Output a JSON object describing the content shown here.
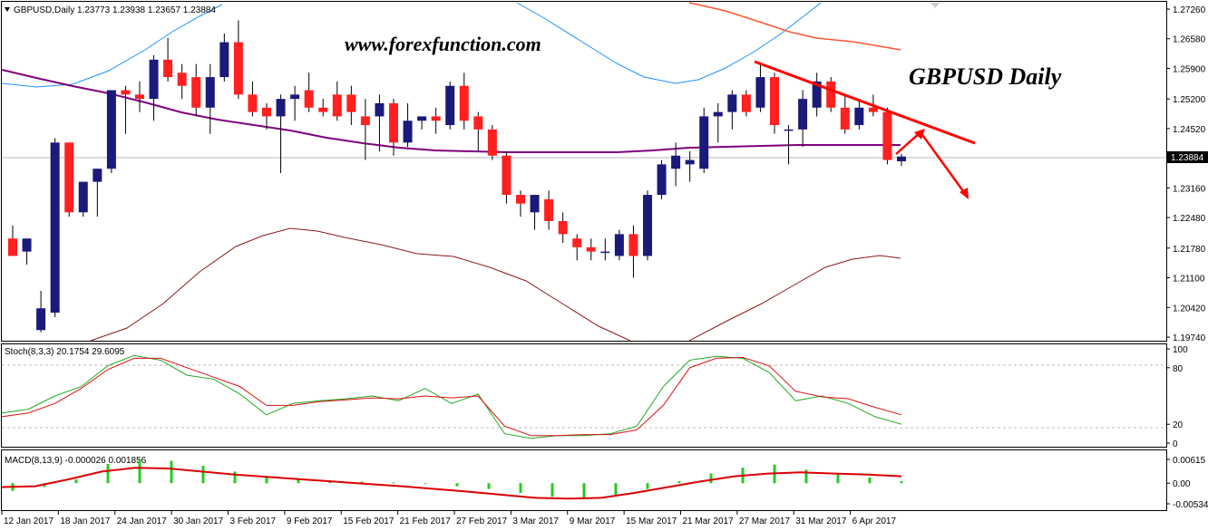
{
  "colors": {
    "background": "#ffffff",
    "bull_candle": "#1a1a7a",
    "bear_candle": "#ff2020",
    "wick": "#000000",
    "ma_purple": "#800080",
    "bb_blue": "#1e90ff",
    "ma_orange": "#ff5533",
    "bb_lower": "#8b1a1a",
    "stoch_main": "#22aa22",
    "stoch_signal": "#dd1111",
    "macd_hist": "#22cc22",
    "macd_signal": "#dd0000",
    "trend_line": "#ff0000",
    "price_line": "#b0b0b0"
  },
  "watermark": {
    "site": "www.forexfunction.com",
    "title": "GBPUSD Daily"
  },
  "price_panel": {
    "info": "GBPUSD,Daily  1.23773 1.23938 1.23657 1.23884",
    "current_price_label": "1.23884",
    "axis_labels": [
      "1.27260",
      "1.26580",
      "1.25900",
      "1.25200",
      "1.24520",
      "1.23160",
      "1.22480",
      "1.21780",
      "1.21100",
      "1.20420",
      "1.19740"
    ]
  },
  "stoch_panel": {
    "info": "Stoch(8,3,3) 20.1754 29.6095",
    "axis_labels": [
      "100",
      "80",
      "20",
      "0"
    ]
  },
  "macd_panel": {
    "info": "MACD(8,13,9) -0.000026 0.001856",
    "axis_labels": [
      "0.00615",
      "0.00",
      "-0.00534"
    ]
  },
  "date_labels": [
    "12 Jan 2017",
    "18 Jan 2017",
    "24 Jan 2017",
    "30 Jan 2017",
    "3 Feb 2017",
    "9 Feb 2017",
    "15 Feb 2017",
    "21 Feb 2017",
    "27 Feb 2017",
    "3 Mar 2017",
    "9 Mar 2017",
    "15 Mar 2017",
    "21 Mar 2017",
    "27 Mar 2017",
    "31 Mar 2017",
    "6 Apr 2017"
  ],
  "chart_data": {
    "type": "candlestick",
    "symbol": "GBPUSD",
    "timeframe": "Daily",
    "ylim": [
      1.1974,
      1.2726
    ],
    "candles": [
      {
        "o": 1.22,
        "h": 1.223,
        "l": 1.216,
        "c": 1.216
      },
      {
        "o": 1.217,
        "h": 1.22,
        "l": 1.214,
        "c": 1.22
      },
      {
        "o": 1.199,
        "h": 1.208,
        "l": 1.1985,
        "c": 1.204
      },
      {
        "o": 1.203,
        "h": 1.243,
        "l": 1.202,
        "c": 1.242
      },
      {
        "o": 1.242,
        "h": 1.242,
        "l": 1.225,
        "c": 1.226
      },
      {
        "o": 1.226,
        "h": 1.233,
        "l": 1.225,
        "c": 1.233
      },
      {
        "o": 1.233,
        "h": 1.236,
        "l": 1.225,
        "c": 1.236
      },
      {
        "o": 1.236,
        "h": 1.254,
        "l": 1.235,
        "c": 1.254
      },
      {
        "o": 1.254,
        "h": 1.255,
        "l": 1.244,
        "c": 1.253
      },
      {
        "o": 1.253,
        "h": 1.256,
        "l": 1.249,
        "c": 1.252
      },
      {
        "o": 1.252,
        "h": 1.262,
        "l": 1.247,
        "c": 1.261
      },
      {
        "o": 1.261,
        "h": 1.266,
        "l": 1.256,
        "c": 1.257
      },
      {
        "o": 1.258,
        "h": 1.26,
        "l": 1.252,
        "c": 1.255
      },
      {
        "o": 1.257,
        "h": 1.26,
        "l": 1.248,
        "c": 1.25
      },
      {
        "o": 1.25,
        "h": 1.26,
        "l": 1.244,
        "c": 1.257
      },
      {
        "o": 1.257,
        "h": 1.267,
        "l": 1.256,
        "c": 1.265
      },
      {
        "o": 1.265,
        "h": 1.27,
        "l": 1.252,
        "c": 1.253
      },
      {
        "o": 1.253,
        "h": 1.256,
        "l": 1.248,
        "c": 1.249
      },
      {
        "o": 1.25,
        "h": 1.251,
        "l": 1.245,
        "c": 1.248
      },
      {
        "o": 1.248,
        "h": 1.253,
        "l": 1.235,
        "c": 1.252
      },
      {
        "o": 1.252,
        "h": 1.255,
        "l": 1.247,
        "c": 1.253
      },
      {
        "o": 1.254,
        "h": 1.258,
        "l": 1.249,
        "c": 1.25
      },
      {
        "o": 1.25,
        "h": 1.252,
        "l": 1.248,
        "c": 1.249
      },
      {
        "o": 1.253,
        "h": 1.256,
        "l": 1.247,
        "c": 1.248
      },
      {
        "o": 1.253,
        "h": 1.255,
        "l": 1.246,
        "c": 1.249
      },
      {
        "o": 1.248,
        "h": 1.252,
        "l": 1.238,
        "c": 1.246
      },
      {
        "o": 1.248,
        "h": 1.253,
        "l": 1.24,
        "c": 1.251
      },
      {
        "o": 1.251,
        "h": 1.252,
        "l": 1.239,
        "c": 1.242
      },
      {
        "o": 1.242,
        "h": 1.251,
        "l": 1.241,
        "c": 1.247
      },
      {
        "o": 1.247,
        "h": 1.248,
        "l": 1.245,
        "c": 1.248
      },
      {
        "o": 1.248,
        "h": 1.25,
        "l": 1.244,
        "c": 1.247
      },
      {
        "o": 1.246,
        "h": 1.256,
        "l": 1.245,
        "c": 1.255
      },
      {
        "o": 1.255,
        "h": 1.258,
        "l": 1.245,
        "c": 1.247
      },
      {
        "o": 1.248,
        "h": 1.249,
        "l": 1.24,
        "c": 1.245
      },
      {
        "o": 1.245,
        "h": 1.246,
        "l": 1.238,
        "c": 1.239
      },
      {
        "o": 1.239,
        "h": 1.24,
        "l": 1.228,
        "c": 1.23
      },
      {
        "o": 1.23,
        "h": 1.231,
        "l": 1.225,
        "c": 1.228
      },
      {
        "o": 1.226,
        "h": 1.23,
        "l": 1.222,
        "c": 1.23
      },
      {
        "o": 1.229,
        "h": 1.231,
        "l": 1.222,
        "c": 1.224
      },
      {
        "o": 1.224,
        "h": 1.226,
        "l": 1.219,
        "c": 1.221
      },
      {
        "o": 1.22,
        "h": 1.221,
        "l": 1.215,
        "c": 1.218
      },
      {
        "o": 1.218,
        "h": 1.22,
        "l": 1.215,
        "c": 1.217
      },
      {
        "o": 1.217,
        "h": 1.22,
        "l": 1.215,
        "c": 1.217
      },
      {
        "o": 1.216,
        "h": 1.222,
        "l": 1.215,
        "c": 1.221
      },
      {
        "o": 1.221,
        "h": 1.223,
        "l": 1.211,
        "c": 1.216
      },
      {
        "o": 1.216,
        "h": 1.231,
        "l": 1.215,
        "c": 1.23
      },
      {
        "o": 1.23,
        "h": 1.238,
        "l": 1.229,
        "c": 1.237
      },
      {
        "o": 1.236,
        "h": 1.242,
        "l": 1.232,
        "c": 1.239
      },
      {
        "o": 1.237,
        "h": 1.24,
        "l": 1.233,
        "c": 1.238
      },
      {
        "o": 1.236,
        "h": 1.25,
        "l": 1.235,
        "c": 1.248
      },
      {
        "o": 1.248,
        "h": 1.251,
        "l": 1.242,
        "c": 1.249
      },
      {
        "o": 1.249,
        "h": 1.254,
        "l": 1.245,
        "c": 1.253
      },
      {
        "o": 1.253,
        "h": 1.254,
        "l": 1.248,
        "c": 1.249
      },
      {
        "o": 1.25,
        "h": 1.26,
        "l": 1.249,
        "c": 1.257
      },
      {
        "o": 1.257,
        "h": 1.258,
        "l": 1.244,
        "c": 1.246
      },
      {
        "o": 1.245,
        "h": 1.246,
        "l": 1.237,
        "c": 1.245
      },
      {
        "o": 1.245,
        "h": 1.254,
        "l": 1.241,
        "c": 1.252
      },
      {
        "o": 1.25,
        "h": 1.258,
        "l": 1.248,
        "c": 1.256
      },
      {
        "o": 1.256,
        "h": 1.257,
        "l": 1.249,
        "c": 1.25
      },
      {
        "o": 1.25,
        "h": 1.253,
        "l": 1.244,
        "c": 1.245
      },
      {
        "o": 1.246,
        "h": 1.252,
        "l": 1.245,
        "c": 1.25
      },
      {
        "o": 1.25,
        "h": 1.253,
        "l": 1.248,
        "c": 1.249
      },
      {
        "o": 1.249,
        "h": 1.25,
        "l": 1.237,
        "c": 1.238
      },
      {
        "o": 1.2377,
        "h": 1.2394,
        "l": 1.2366,
        "c": 1.2388
      }
    ],
    "ma_purple": [
      1.256,
      1.255,
      1.254,
      1.253,
      1.252,
      1.251,
      1.25,
      1.249,
      1.248,
      1.247,
      1.246,
      1.245,
      1.2445,
      1.244,
      1.2435,
      1.243,
      1.2428,
      1.2426,
      1.2425,
      1.2424,
      1.2423,
      1.2422,
      1.2422,
      1.2421,
      1.2421,
      1.2421,
      1.2421,
      1.2421,
      1.2421,
      1.2421,
      1.2421,
      1.2421,
      1.2421,
      1.2422,
      1.2423,
      1.2424,
      1.2425,
      1.2425,
      1.2426
    ],
    "bb_upper": [
      1.259,
      1.262,
      1.266,
      1.27,
      1.273,
      1.276,
      1.279,
      1.282
    ],
    "stoch_main": [
      32,
      36,
      50,
      60,
      82,
      93,
      88,
      72,
      68,
      52,
      30,
      42,
      45,
      47,
      50,
      45,
      58,
      42,
      52,
      10,
      5,
      8,
      8,
      10,
      18,
      60,
      88,
      92,
      90,
      75,
      45,
      50,
      42,
      28,
      20
    ],
    "stoch_signal": [
      28,
      32,
      42,
      58,
      78,
      90,
      90,
      80,
      70,
      60,
      40,
      40,
      44,
      46,
      48,
      47,
      50,
      48,
      50,
      18,
      8,
      8,
      9,
      9,
      14,
      40,
      80,
      90,
      91,
      82,
      55,
      49,
      47,
      38,
      30
    ],
    "macd_hist": [
      -0.002,
      -0.001,
      0.001,
      0.005,
      0.0061,
      0.0058,
      0.0045,
      0.003,
      0.0018,
      0.001,
      0.0006,
      0.0004,
      0.0002,
      -0.0002,
      -0.0008,
      -0.0015,
      -0.0025,
      -0.0035,
      -0.004,
      -0.003,
      -0.0015,
      0.0005,
      0.0025,
      0.004,
      0.0048,
      0.0035,
      0.0025,
      0.0015,
      0.0005
    ],
    "macd_signal": [
      -0.001,
      -0.0008,
      0.001,
      0.003,
      0.004,
      0.0038,
      0.003,
      0.0022,
      0.0016,
      0.001,
      0.0004,
      -0.0002,
      -0.0008,
      -0.0015,
      -0.0022,
      -0.003,
      -0.0038,
      -0.004,
      -0.0038,
      -0.0025,
      -0.001,
      0.0005,
      0.0018,
      0.0025,
      0.0028,
      0.0025,
      0.0022,
      0.0018
    ]
  }
}
